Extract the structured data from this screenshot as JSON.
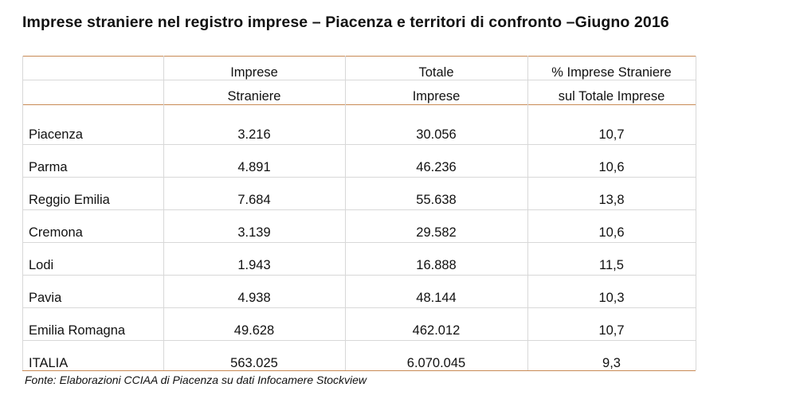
{
  "title": "Imprese straniere nel registro imprese – Piacenza e territori di confronto –Giugno 2016",
  "table": {
    "headers": [
      {
        "line1": "",
        "line2": ""
      },
      {
        "line1": "Imprese",
        "line2": "Straniere"
      },
      {
        "line1": "Totale",
        "line2": "Imprese"
      },
      {
        "line1": "% Imprese Straniere",
        "line2": "sul Totale Imprese"
      }
    ],
    "rows": [
      {
        "territory": "Piacenza",
        "foreign": "3.216",
        "total": "30.056",
        "pct": "10,7"
      },
      {
        "territory": "Parma",
        "foreign": "4.891",
        "total": "46.236",
        "pct": "10,6"
      },
      {
        "territory": "Reggio Emilia",
        "foreign": "7.684",
        "total": "55.638",
        "pct": "13,8"
      },
      {
        "territory": "Cremona",
        "foreign": "3.139",
        "total": "29.582",
        "pct": "10,6"
      },
      {
        "territory": "Lodi",
        "foreign": "1.943",
        "total": "16.888",
        "pct": "11,5"
      },
      {
        "territory": "Pavia",
        "foreign": "4.938",
        "total": "48.144",
        "pct": "10,3"
      },
      {
        "territory": "Emilia Romagna",
        "foreign": "49.628",
        "total": "462.012",
        "pct": "10,7"
      },
      {
        "territory": "ITALIA",
        "foreign": "563.025",
        "total": "6.070.045",
        "pct": "9,3"
      }
    ]
  },
  "source": "Fonte: Elaborazioni CCIAA di Piacenza su dati Infocamere Stockview"
}
